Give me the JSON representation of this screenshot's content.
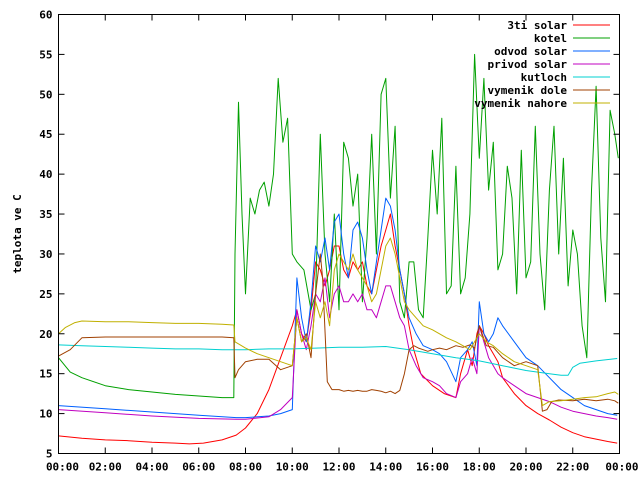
{
  "chart_data": {
    "type": "line",
    "title": "",
    "xlabel": "",
    "ylabel": "teplota ve C",
    "xlim": [
      0,
      24
    ],
    "ylim": [
      5,
      60
    ],
    "x_ticks": [
      0,
      2,
      4,
      6,
      8,
      10,
      12,
      14,
      16,
      18,
      20,
      22,
      24
    ],
    "x_tick_labels": [
      "00:00",
      "02:00",
      "04:00",
      "06:00",
      "08:00",
      "10:00",
      "12:00",
      "14:00",
      "16:00",
      "18:00",
      "20:00",
      "22:00",
      "00:00"
    ],
    "y_ticks": [
      5,
      10,
      15,
      20,
      25,
      30,
      35,
      40,
      45,
      50,
      55,
      60
    ],
    "y_tick_labels": [
      "5",
      "10",
      "15",
      "20",
      "25",
      "30",
      "35",
      "40",
      "45",
      "50",
      "55",
      "60"
    ],
    "grid": false,
    "legend_position": "top-right",
    "series": [
      {
        "name": "3ti solar",
        "color": "#ff0000",
        "x": [
          0,
          1,
          2,
          3,
          4,
          5,
          5.6,
          6.2,
          7,
          7.6,
          8,
          8.5,
          9,
          9.5,
          10,
          10.2,
          10.4,
          10.6,
          10.8,
          11,
          11.2,
          11.4,
          11.6,
          11.8,
          12,
          12.2,
          12.4,
          12.6,
          12.8,
          13,
          13.2,
          13.4,
          13.6,
          13.8,
          14,
          14.2,
          14.4,
          14.6,
          14.8,
          15,
          15.2,
          15.5,
          16,
          16.5,
          17,
          17.2,
          17.5,
          17.7,
          17.9,
          18,
          18.2,
          18.4,
          18.6,
          18.8,
          19,
          19.5,
          20,
          20.5,
          21,
          21.5,
          22,
          22.5,
          23,
          23.5,
          23.9
        ],
        "y": [
          7.2,
          6.9,
          6.7,
          6.6,
          6.4,
          6.3,
          6.2,
          6.3,
          6.7,
          7.3,
          8.2,
          10,
          13,
          17,
          21,
          23,
          20,
          19,
          23,
          29,
          28,
          26,
          28,
          31,
          31,
          28,
          27,
          29,
          28,
          29,
          26,
          25,
          28,
          31,
          33,
          35,
          31,
          28,
          25,
          21,
          18,
          15,
          13.5,
          12.5,
          12,
          15,
          18,
          16,
          20,
          21,
          20,
          18.5,
          17.5,
          16.5,
          14.5,
          12.5,
          11,
          10,
          9.2,
          8.3,
          7.6,
          7.1,
          6.8,
          6.5,
          6.3
        ]
      },
      {
        "name": "kotel",
        "color": "#00a000",
        "x": [
          0,
          0.5,
          1,
          2,
          3,
          4,
          5,
          6,
          7,
          7.5,
          7.55,
          7.7,
          7.85,
          8,
          8.2,
          8.4,
          8.6,
          8.8,
          9,
          9.2,
          9.4,
          9.6,
          9.8,
          10,
          10.2,
          10.5,
          10.8,
          11,
          11.2,
          11.4,
          11.6,
          11.8,
          12,
          12.2,
          12.4,
          12.6,
          12.8,
          13,
          13.2,
          13.4,
          13.6,
          13.8,
          14,
          14.2,
          14.4,
          14.6,
          14.8,
          15,
          15.2,
          15.4,
          15.6,
          15.8,
          16,
          16.2,
          16.4,
          16.6,
          16.8,
          17,
          17.2,
          17.4,
          17.6,
          17.8,
          18,
          18.2,
          18.4,
          18.6,
          18.8,
          19,
          19.2,
          19.4,
          19.6,
          19.8,
          20,
          20.2,
          20.4,
          20.6,
          20.8,
          21,
          21.2,
          21.4,
          21.6,
          21.8,
          22,
          22.2,
          22.4,
          22.6,
          22.8,
          23,
          23.2,
          23.4,
          23.6,
          23.8,
          23.95
        ],
        "y": [
          17,
          15.2,
          14.5,
          13.5,
          13,
          12.7,
          12.4,
          12.2,
          12,
          12,
          30,
          49,
          35,
          25,
          37,
          35,
          38,
          39,
          36,
          40,
          52,
          44,
          47,
          30,
          29,
          28,
          23,
          25,
          45,
          30,
          24,
          35,
          23,
          44,
          42,
          36,
          40,
          24,
          32,
          45,
          30,
          50,
          52,
          37,
          46,
          24,
          22,
          29,
          29,
          23,
          22,
          32,
          43,
          35,
          47,
          25,
          26,
          41,
          25,
          27,
          35,
          55,
          42,
          52,
          38,
          44,
          28,
          30,
          41,
          37,
          25,
          43,
          27,
          29,
          46,
          30,
          23,
          38,
          46,
          30,
          42,
          26,
          33,
          30,
          21,
          17,
          38,
          51,
          32,
          24,
          48,
          45,
          42
        ]
      },
      {
        "name": "odvod solar",
        "color": "#0060ff",
        "x": [
          0,
          2,
          4,
          6,
          7.6,
          8,
          9,
          9.5,
          10,
          10.2,
          10.4,
          10.6,
          10.8,
          11,
          11.2,
          11.4,
          11.6,
          11.8,
          12,
          12.2,
          12.4,
          12.6,
          12.8,
          13,
          13.2,
          13.4,
          13.6,
          13.8,
          14,
          14.2,
          14.4,
          14.6,
          14.8,
          15,
          15.3,
          15.6,
          16,
          16.3,
          16.6,
          17,
          17.2,
          17.5,
          17.7,
          17.9,
          18,
          18.2,
          18.4,
          18.6,
          18.8,
          19,
          19.5,
          20,
          20.5,
          21,
          21.5,
          22,
          22.5,
          23,
          23.5,
          23.9
        ],
        "y": [
          11,
          10.6,
          10.2,
          9.8,
          9.5,
          9.5,
          9.7,
          10,
          10.5,
          27,
          22,
          19,
          24,
          31,
          29,
          32,
          28,
          34,
          35,
          30,
          27,
          33,
          34,
          32,
          28,
          25,
          29,
          33,
          37,
          36,
          33,
          28,
          25,
          22,
          20,
          18.5,
          18,
          17.5,
          16.5,
          14,
          17,
          18,
          19,
          16,
          24,
          20,
          19,
          20,
          22,
          21,
          19,
          17,
          16,
          14.5,
          13,
          12,
          11,
          10.5,
          10,
          9.8
        ]
      },
      {
        "name": "privod solar",
        "color": "#c000c0",
        "x": [
          0,
          2,
          4,
          6,
          7.6,
          8,
          9,
          9.5,
          10,
          10.2,
          10.4,
          10.6,
          10.8,
          11,
          11.2,
          11.4,
          11.6,
          11.8,
          12,
          12.2,
          12.4,
          12.6,
          12.8,
          13,
          13.2,
          13.4,
          13.6,
          13.8,
          14,
          14.2,
          14.4,
          14.6,
          14.8,
          15,
          15.3,
          15.6,
          16,
          16.3,
          16.6,
          17,
          17.2,
          17.5,
          17.7,
          17.9,
          18,
          18.2,
          18.4,
          18.6,
          18.8,
          19,
          19.5,
          20,
          20.5,
          21,
          21.5,
          22,
          22.5,
          23,
          23.5,
          23.9
        ],
        "y": [
          10.5,
          10.1,
          9.7,
          9.4,
          9.3,
          9.3,
          9.6,
          10.5,
          12,
          23,
          20,
          18,
          21,
          25,
          24,
          27,
          22,
          25,
          26,
          24,
          24,
          25,
          24,
          25,
          23,
          23,
          22,
          24,
          26,
          26,
          24,
          22,
          21,
          18,
          16,
          14.5,
          14,
          13.5,
          12.5,
          12,
          14,
          15,
          17,
          15,
          21,
          19,
          17,
          16,
          15,
          14.5,
          13.5,
          12.5,
          12,
          11.5,
          10.8,
          10.3,
          10,
          9.7,
          9.5,
          9.3
        ]
      },
      {
        "name": "kutloch",
        "color": "#00d0d0",
        "x": [
          0,
          1,
          2,
          3,
          4,
          5,
          6,
          7,
          7.6,
          8,
          9,
          10,
          11,
          12,
          13,
          14,
          15,
          16,
          17,
          17.5,
          18,
          18.5,
          19,
          19.5,
          20,
          20.5,
          21,
          21.5,
          21.8,
          22,
          22.3,
          23,
          23.9
        ],
        "y": [
          18.6,
          18.5,
          18.4,
          18.3,
          18.2,
          18.1,
          18.1,
          18.0,
          18.0,
          18.0,
          18.1,
          18.1,
          18.2,
          18.3,
          18.3,
          18.4,
          18.0,
          17.5,
          17.0,
          16.8,
          16.6,
          16.3,
          16.0,
          15.7,
          15.4,
          15.2,
          15.0,
          14.8,
          14.8,
          15.8,
          16.3,
          16.6,
          16.9
        ]
      },
      {
        "name": "vymenik dole",
        "color": "#a04000",
        "x": [
          0,
          0.5,
          1,
          2,
          3,
          4,
          5,
          6,
          7,
          7.5,
          7.55,
          7.7,
          8,
          8.5,
          9,
          9.5,
          10,
          10.2,
          10.4,
          10.6,
          10.8,
          11,
          11.2,
          11.3,
          11.5,
          11.7,
          11.9,
          12,
          12.2,
          12.4,
          12.6,
          12.8,
          13,
          13.2,
          13.4,
          13.6,
          13.8,
          14,
          14.2,
          14.4,
          14.6,
          14.8,
          15,
          15.2,
          15.4,
          15.6,
          15.8,
          16,
          16.3,
          16.6,
          17,
          17.3,
          17.6,
          17.8,
          18,
          18.3,
          18.6,
          19,
          19.5,
          20,
          20.5,
          20.7,
          20.9,
          21.1,
          21.4,
          22,
          22.5,
          23,
          23.5,
          23.8,
          23.95
        ],
        "y": [
          17.2,
          18,
          19.5,
          19.6,
          19.6,
          19.6,
          19.6,
          19.6,
          19.6,
          19.5,
          14.5,
          15.5,
          16.5,
          16.8,
          16.8,
          15.5,
          16,
          22,
          19,
          20,
          17,
          25,
          30,
          27,
          14,
          13,
          13,
          13,
          12.8,
          12.9,
          12.8,
          12.9,
          12.8,
          12.8,
          13,
          12.9,
          12.8,
          12.6,
          12.8,
          12.5,
          12.9,
          15,
          18,
          18.5,
          18.2,
          18,
          17.8,
          18,
          18.2,
          18,
          18.5,
          18.3,
          18.6,
          18.2,
          21,
          18.5,
          18.3,
          17,
          16,
          16.5,
          16,
          10.3,
          10.5,
          11.5,
          11.7,
          11.6,
          11.8,
          11.6,
          11.8,
          11.6,
          11.3
        ]
      },
      {
        "name": "vymenik nahore",
        "color": "#c0b000",
        "x": [
          0,
          0.3,
          0.7,
          1,
          2,
          3,
          4,
          5,
          6,
          7,
          7.5,
          7.55,
          8,
          8.5,
          9,
          9.5,
          10,
          10.2,
          10.4,
          10.6,
          10.8,
          11,
          11.2,
          11.4,
          11.6,
          11.8,
          12,
          12.2,
          12.4,
          12.6,
          12.8,
          13,
          13.2,
          13.4,
          13.6,
          13.8,
          14,
          14.2,
          14.4,
          14.6,
          14.8,
          15,
          15.3,
          15.6,
          16,
          16.3,
          16.6,
          17,
          17.3,
          17.6,
          17.8,
          18,
          18.3,
          18.6,
          19,
          19.5,
          20,
          20.5,
          20.7,
          21,
          21.5,
          22,
          22.5,
          23,
          23.5,
          23.8,
          23.95
        ],
        "y": [
          20,
          20.8,
          21.4,
          21.6,
          21.5,
          21.5,
          21.4,
          21.3,
          21.3,
          21.2,
          21.1,
          19,
          18.2,
          17.5,
          17,
          16.5,
          16,
          22,
          19,
          19.5,
          18,
          24,
          22,
          24,
          21,
          28,
          30,
          29,
          28,
          30,
          28,
          27,
          26,
          24,
          25,
          28,
          31,
          32,
          30,
          27,
          24,
          23,
          22,
          21,
          20.5,
          20,
          19.5,
          19,
          18.5,
          18,
          19,
          20,
          19,
          18.5,
          17.5,
          16.5,
          16,
          15.5,
          11,
          11.5,
          11.6,
          11.8,
          12,
          12.1,
          12.5,
          12.7,
          12.4
        ]
      }
    ]
  }
}
